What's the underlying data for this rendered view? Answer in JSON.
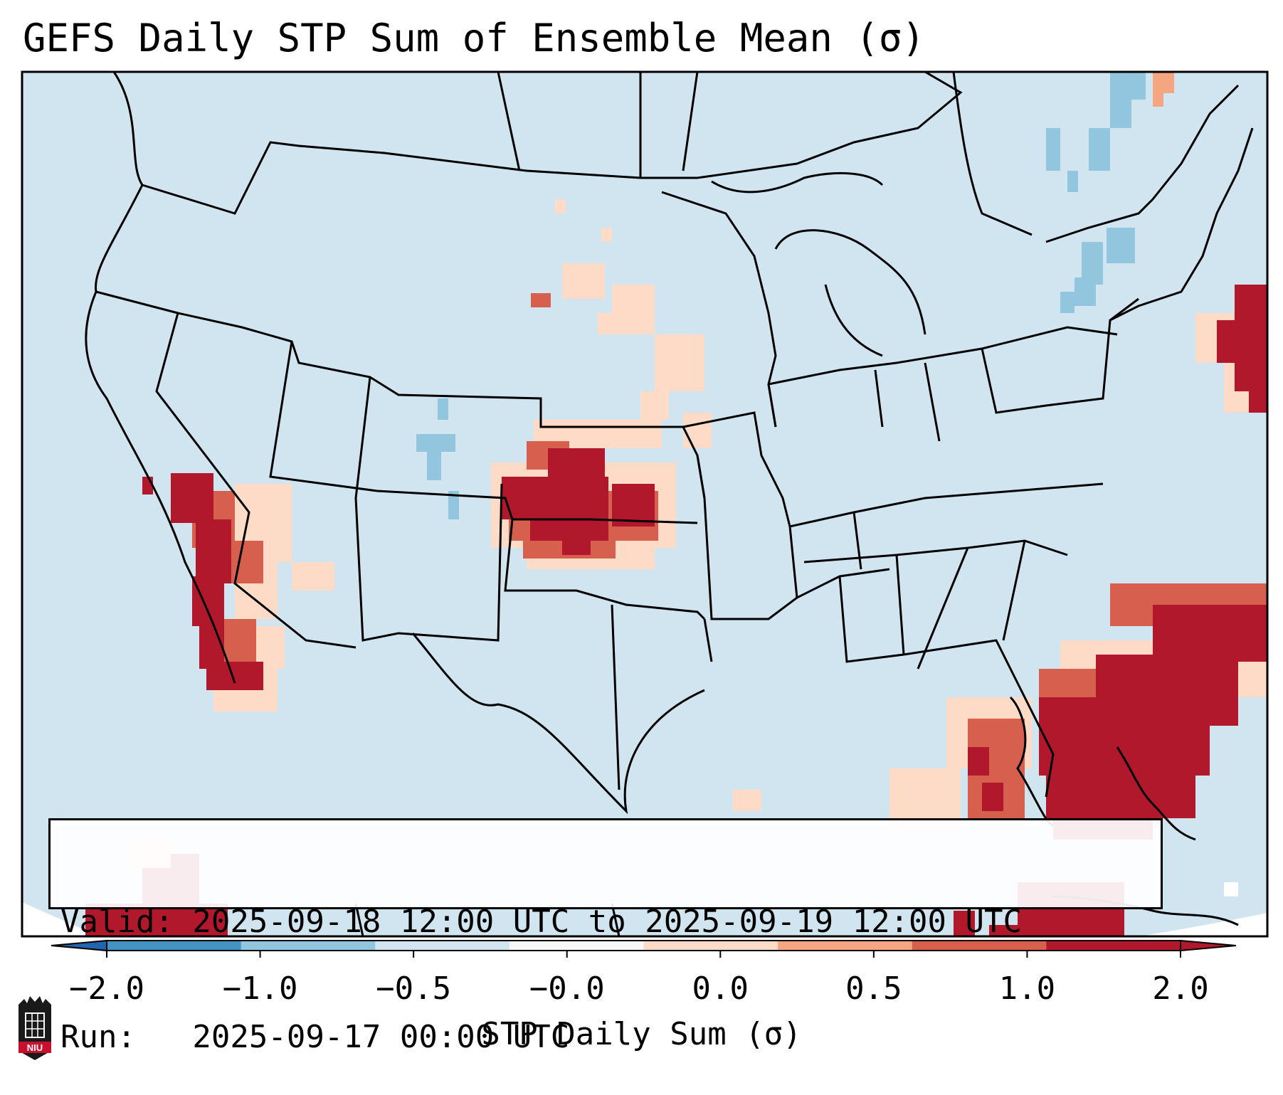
{
  "title": "GEFS Daily STP Sum of Ensemble Mean (σ)",
  "info": {
    "valid_line": "Valid: 2025-09-18 12:00 UTC to 2025-09-19 12:00 UTC",
    "run_line": "Run:   2025-09-17 00:00 UTC"
  },
  "colorbar": {
    "label": "STP Daily Sum (σ)",
    "ticks": [
      "−2.0",
      "−1.0",
      "−0.5",
      "−0.0",
      "0.0",
      "0.5",
      "1.0",
      "2.0"
    ],
    "segment_colors": [
      "#4393c3",
      "#92c5de",
      "#d1e5f0",
      "#f7f7f7",
      "#fddbc7",
      "#f4a582",
      "#d6604d",
      "#b2182b"
    ],
    "extend_low_color": "#2166ac",
    "extend_high_color": "#b2182b"
  },
  "map": {
    "background_color": "#d1e5f0",
    "outside_color": "#ffffff",
    "features": [
      {
        "name": "oklahoma-kansas-core",
        "category": 2.0
      },
      {
        "name": "california-central-valley",
        "category": 2.0
      },
      {
        "name": "florida-atlantic-offshore",
        "category": 2.0
      },
      {
        "name": "new-england-offshore",
        "category": 2.0
      },
      {
        "name": "mexico-pacific-southwest",
        "category": 2.0
      },
      {
        "name": "cuba-caribbean",
        "category": 2.0
      },
      {
        "name": "plains-nebraska-dakota",
        "category": 0.0
      },
      {
        "name": "colorado-rockies",
        "category": -0.5
      },
      {
        "name": "quebec-northeast",
        "category": -0.5
      }
    ]
  },
  "logo": {
    "text": "NIU"
  }
}
